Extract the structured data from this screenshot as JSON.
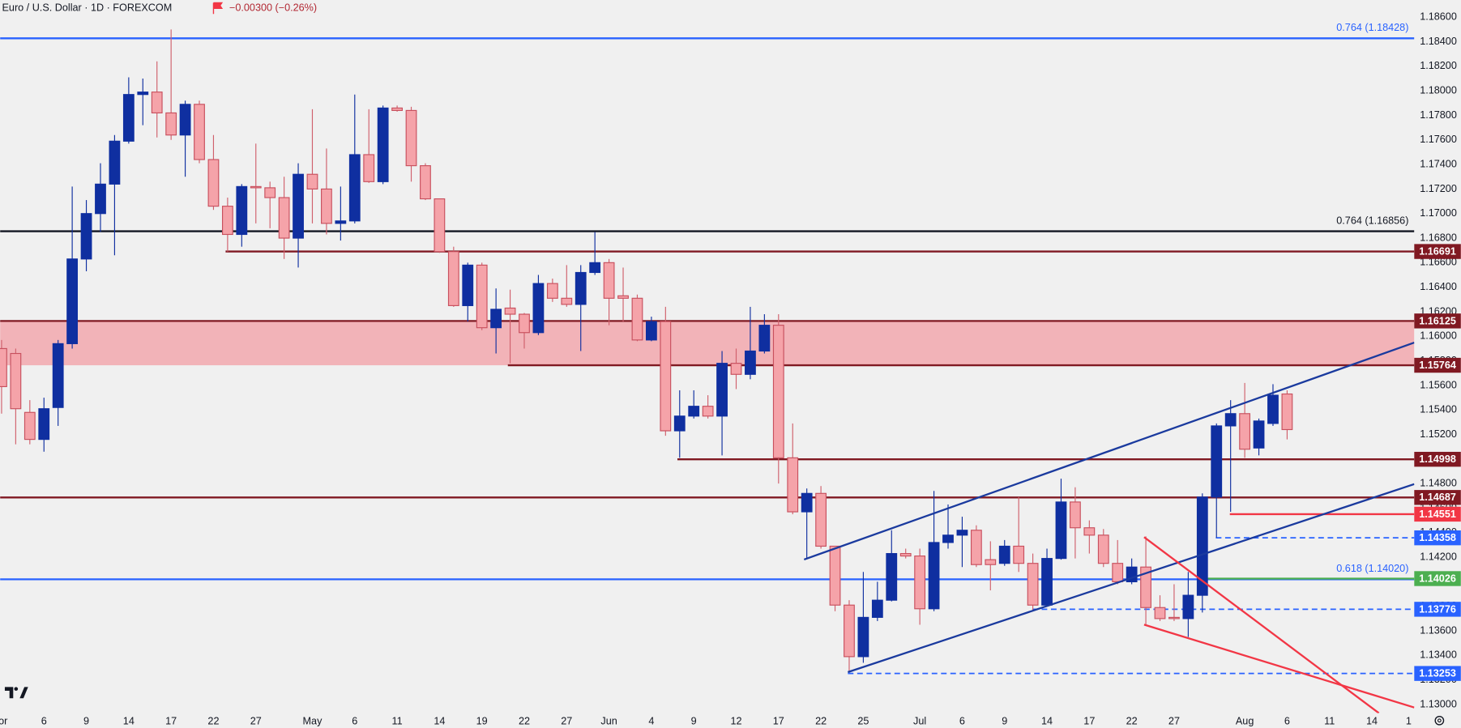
{
  "chart_data": {
    "type": "candlestick",
    "title": "Euro / U.S. Dollar · 1D · FOREXCOM",
    "subtitle": "−0.00300 (−0.26%)",
    "up_color": "#0f2fa0",
    "down_color": "#f5a3a9",
    "open": [
      1.159,
      1.1586,
      1.1538,
      1.1516,
      1.1542,
      1.1594,
      1.1663,
      1.17,
      1.1724,
      1.1759,
      1.1797,
      1.1799,
      1.1782,
      1.1764,
      1.1789,
      1.1744,
      1.1706,
      1.1683,
      1.1722,
      1.1721,
      1.1713,
      1.168,
      1.1732,
      1.172,
      1.1692,
      1.1694,
      1.1748,
      1.1726,
      1.1786,
      1.1784,
      1.1739,
      1.1712,
      1.1669,
      1.1625,
      1.1658,
      1.1607,
      1.1623,
      1.1618,
      1.1603,
      1.1643,
      1.1631,
      1.1626,
      1.1652,
      1.166,
      1.1633,
      1.1631,
      1.1597,
      1.1612,
      1.1523,
      1.1535,
      1.1543,
      1.1535,
      1.1578,
      1.1569,
      1.1588,
      1.1609,
      1.1501,
      1.1457,
      1.1472,
      1.1429,
      1.1381,
      1.1339,
      1.1371,
      1.1385,
      1.1423,
      1.1421,
      1.1378,
      1.1432,
      1.1438,
      1.1442,
      1.1418,
      1.1415,
      1.1429,
      1.1415,
      1.1381,
      1.1419,
      1.1465,
      1.1444,
      1.1438,
      1.1415,
      1.14,
      1.1412,
      1.1379,
      1.1371,
      1.137,
      1.1389,
      1.1469,
      1.1527,
      1.1537,
      1.1509,
      1.1529,
      1.1553
    ],
    "high": [
      1.1597,
      1.159,
      1.1548,
      1.155,
      1.1597,
      1.1722,
      1.1711,
      1.1741,
      1.1764,
      1.1811,
      1.181,
      1.1824,
      1.185,
      1.1792,
      1.1792,
      1.1764,
      1.1713,
      1.1724,
      1.1757,
      1.1726,
      1.173,
      1.1741,
      1.1785,
      1.1753,
      1.1722,
      1.1797,
      1.1785,
      1.1788,
      1.1788,
      1.1787,
      1.1741,
      1.1712,
      1.1673,
      1.166,
      1.166,
      1.1639,
      1.1638,
      1.1619,
      1.165,
      1.1647,
      1.1658,
      1.1658,
      1.1685,
      1.1663,
      1.1656,
      1.1634,
      1.1616,
      1.1624,
      1.1556,
      1.1556,
      1.1552,
      1.1588,
      1.159,
      1.1624,
      1.1618,
      1.1618,
      1.1529,
      1.1476,
      1.1478,
      1.1429,
      1.1385,
      1.1408,
      1.14,
      1.1442,
      1.1427,
      1.1427,
      1.1474,
      1.1463,
      1.1453,
      1.1446,
      1.1433,
      1.1434,
      1.1469,
      1.1423,
      1.1427,
      1.1484,
      1.1477,
      1.145,
      1.1443,
      1.1434,
      1.1419,
      1.1437,
      1.1389,
      1.1398,
      1.1408,
      1.1472,
      1.1529,
      1.1548,
      1.1562,
      1.1533,
      1.1561,
      1.1556
    ],
    "low": [
      1.1537,
      1.1512,
      1.1512,
      1.1506,
      1.1527,
      1.159,
      1.1653,
      1.1685,
      1.1666,
      1.1757,
      1.1772,
      1.1762,
      1.176,
      1.173,
      1.1741,
      1.1703,
      1.1669,
      1.1673,
      1.1692,
      1.1688,
      1.1663,
      1.1656,
      1.1692,
      1.1683,
      1.1678,
      1.1692,
      1.1725,
      1.1724,
      1.1783,
      1.1726,
      1.1711,
      1.1668,
      1.1624,
      1.1612,
      1.1605,
      1.1586,
      1.1578,
      1.159,
      1.1601,
      1.1628,
      1.1624,
      1.1588,
      1.165,
      1.1609,
      1.1612,
      1.1596,
      1.1596,
      1.1519,
      1.1501,
      1.1533,
      1.1533,
      1.1503,
      1.1557,
      1.1565,
      1.1586,
      1.148,
      1.1455,
      1.1419,
      1.1427,
      1.1376,
      1.1327,
      1.1334,
      1.1368,
      1.1384,
      1.1419,
      1.1365,
      1.1376,
      1.1427,
      1.1412,
      1.1412,
      1.1393,
      1.1413,
      1.1408,
      1.1376,
      1.138,
      1.1418,
      1.1419,
      1.1423,
      1.1412,
      1.1398,
      1.1398,
      1.1364,
      1.1368,
      1.1368,
      1.1355,
      1.1375,
      1.1436,
      1.1457,
      1.1501,
      1.1503,
      1.1527,
      1.1516
    ],
    "close": [
      1.1559,
      1.1541,
      1.1516,
      1.1541,
      1.1594,
      1.1663,
      1.17,
      1.1724,
      1.1759,
      1.1797,
      1.1799,
      1.1782,
      1.1764,
      1.1789,
      1.1744,
      1.1706,
      1.1683,
      1.1722,
      1.1721,
      1.1713,
      1.168,
      1.1732,
      1.172,
      1.1692,
      1.1694,
      1.1748,
      1.1726,
      1.1786,
      1.1784,
      1.1739,
      1.1712,
      1.1669,
      1.1625,
      1.1658,
      1.1607,
      1.1622,
      1.1618,
      1.1603,
      1.1643,
      1.1631,
      1.1626,
      1.1652,
      1.166,
      1.1631,
      1.1631,
      1.1597,
      1.1612,
      1.1523,
      1.1535,
      1.1543,
      1.1535,
      1.1578,
      1.1569,
      1.1588,
      1.1609,
      1.1501,
      1.1457,
      1.1472,
      1.1429,
      1.1381,
      1.1339,
      1.1371,
      1.1385,
      1.1423,
      1.1421,
      1.1378,
      1.1432,
      1.1438,
      1.1442,
      1.1414,
      1.1414,
      1.1429,
      1.1415,
      1.1381,
      1.1419,
      1.1465,
      1.1444,
      1.1438,
      1.1415,
      1.14,
      1.1412,
      1.1379,
      1.137,
      1.137,
      1.1389,
      1.1469,
      1.1527,
      1.1537,
      1.1508,
      1.1531,
      1.1552,
      1.1524
    ],
    "xlim": [
      -0.1,
      100
    ],
    "xticks": [
      {
        "value": 0.1,
        "label": "or"
      },
      {
        "value": 3,
        "label": "6"
      },
      {
        "value": 6,
        "label": "9"
      },
      {
        "value": 9,
        "label": "14"
      },
      {
        "value": 12,
        "label": "17"
      },
      {
        "value": 15,
        "label": "22"
      },
      {
        "value": 18,
        "label": "27"
      },
      {
        "value": 22,
        "label": "May"
      },
      {
        "value": 25,
        "label": "6"
      },
      {
        "value": 28,
        "label": "11"
      },
      {
        "value": 31,
        "label": "14"
      },
      {
        "value": 34,
        "label": "19"
      },
      {
        "value": 37,
        "label": "22"
      },
      {
        "value": 40,
        "label": "27"
      },
      {
        "value": 43,
        "label": "Jun"
      },
      {
        "value": 46,
        "label": "4"
      },
      {
        "value": 49,
        "label": "9"
      },
      {
        "value": 52,
        "label": "12"
      },
      {
        "value": 55,
        "label": "17"
      },
      {
        "value": 58,
        "label": "22"
      },
      {
        "value": 61,
        "label": "25"
      },
      {
        "value": 65,
        "label": "Jul"
      },
      {
        "value": 68,
        "label": "6"
      },
      {
        "value": 71,
        "label": "9"
      },
      {
        "value": 74,
        "label": "14"
      },
      {
        "value": 77,
        "label": "17"
      },
      {
        "value": 80,
        "label": "22"
      },
      {
        "value": 83,
        "label": "27"
      },
      {
        "value": 88,
        "label": "Aug"
      },
      {
        "value": 91,
        "label": "6"
      },
      {
        "value": 94,
        "label": "11"
      },
      {
        "value": 97,
        "label": "14"
      },
      {
        "value": 99.6,
        "label": "1"
      }
    ],
    "ylim": [
      1.1293,
      1.1874
    ],
    "yticks": [
      {
        "value": 1.13,
        "label": "1.13000"
      },
      {
        "value": 1.132,
        "label": "1.13200"
      },
      {
        "value": 1.134,
        "label": "1.13400"
      },
      {
        "value": 1.136,
        "label": "1.13600"
      },
      {
        "value": 1.138,
        "label": "1.13800"
      },
      {
        "value": 1.14,
        "label": "1.14000"
      },
      {
        "value": 1.142,
        "label": "1.14200"
      },
      {
        "value": 1.144,
        "label": "1.14400"
      },
      {
        "value": 1.146,
        "label": "1.14600"
      },
      {
        "value": 1.148,
        "label": "1.14800"
      },
      {
        "value": 1.15,
        "label": "1.15000"
      },
      {
        "value": 1.152,
        "label": "1.15200"
      },
      {
        "value": 1.154,
        "label": "1.15400"
      },
      {
        "value": 1.156,
        "label": "1.15600"
      },
      {
        "value": 1.158,
        "label": "1.15800"
      },
      {
        "value": 1.16,
        "label": "1.16000"
      },
      {
        "value": 1.162,
        "label": "1.16200"
      },
      {
        "value": 1.164,
        "label": "1.16400"
      },
      {
        "value": 1.166,
        "label": "1.16600"
      },
      {
        "value": 1.168,
        "label": "1.16800"
      },
      {
        "value": 1.17,
        "label": "1.17000"
      },
      {
        "value": 1.172,
        "label": "1.17200"
      },
      {
        "value": 1.174,
        "label": "1.17400"
      },
      {
        "value": 1.176,
        "label": "1.17600"
      },
      {
        "value": 1.178,
        "label": "1.17800"
      },
      {
        "value": 1.18,
        "label": "1.18000"
      },
      {
        "value": 1.182,
        "label": "1.18200"
      },
      {
        "value": 1.184,
        "label": "1.18400"
      },
      {
        "value": 1.186,
        "label": "1.18600"
      }
    ],
    "zone_color": "#f2b3b8",
    "levels": [
      {
        "value": 1.18428,
        "color": "#2962ff",
        "label": "0.764 (1.18428)"
      },
      {
        "value": 1.16856,
        "color": "#131722",
        "label": "0.764 (1.16856)"
      },
      {
        "value": 1.16691,
        "color": "#801922",
        "box": true
      },
      {
        "value": 1.16125,
        "color": "#801922",
        "box": true
      },
      {
        "value": 1.15764,
        "color": "#801922",
        "box": true
      },
      {
        "value": 1.14998,
        "color": "#801922",
        "box": true
      },
      {
        "value": 1.14687,
        "color": "#801922",
        "box": true
      },
      {
        "value": 1.14551,
        "color": "#f23645",
        "box": true
      },
      {
        "value": 1.14358,
        "color": "#2962ff",
        "box": true,
        "dashed": true
      },
      {
        "value": 1.1402,
        "color": "#2962ff",
        "label": "0.618 (1.14020)"
      },
      {
        "value": 1.14026,
        "color": "#4caf50",
        "box": true
      },
      {
        "value": 1.13776,
        "color": "#2962ff",
        "box": true,
        "dashed": true
      },
      {
        "value": 1.13253,
        "color": "#2962ff",
        "box": true,
        "dashed": true
      }
    ]
  }
}
